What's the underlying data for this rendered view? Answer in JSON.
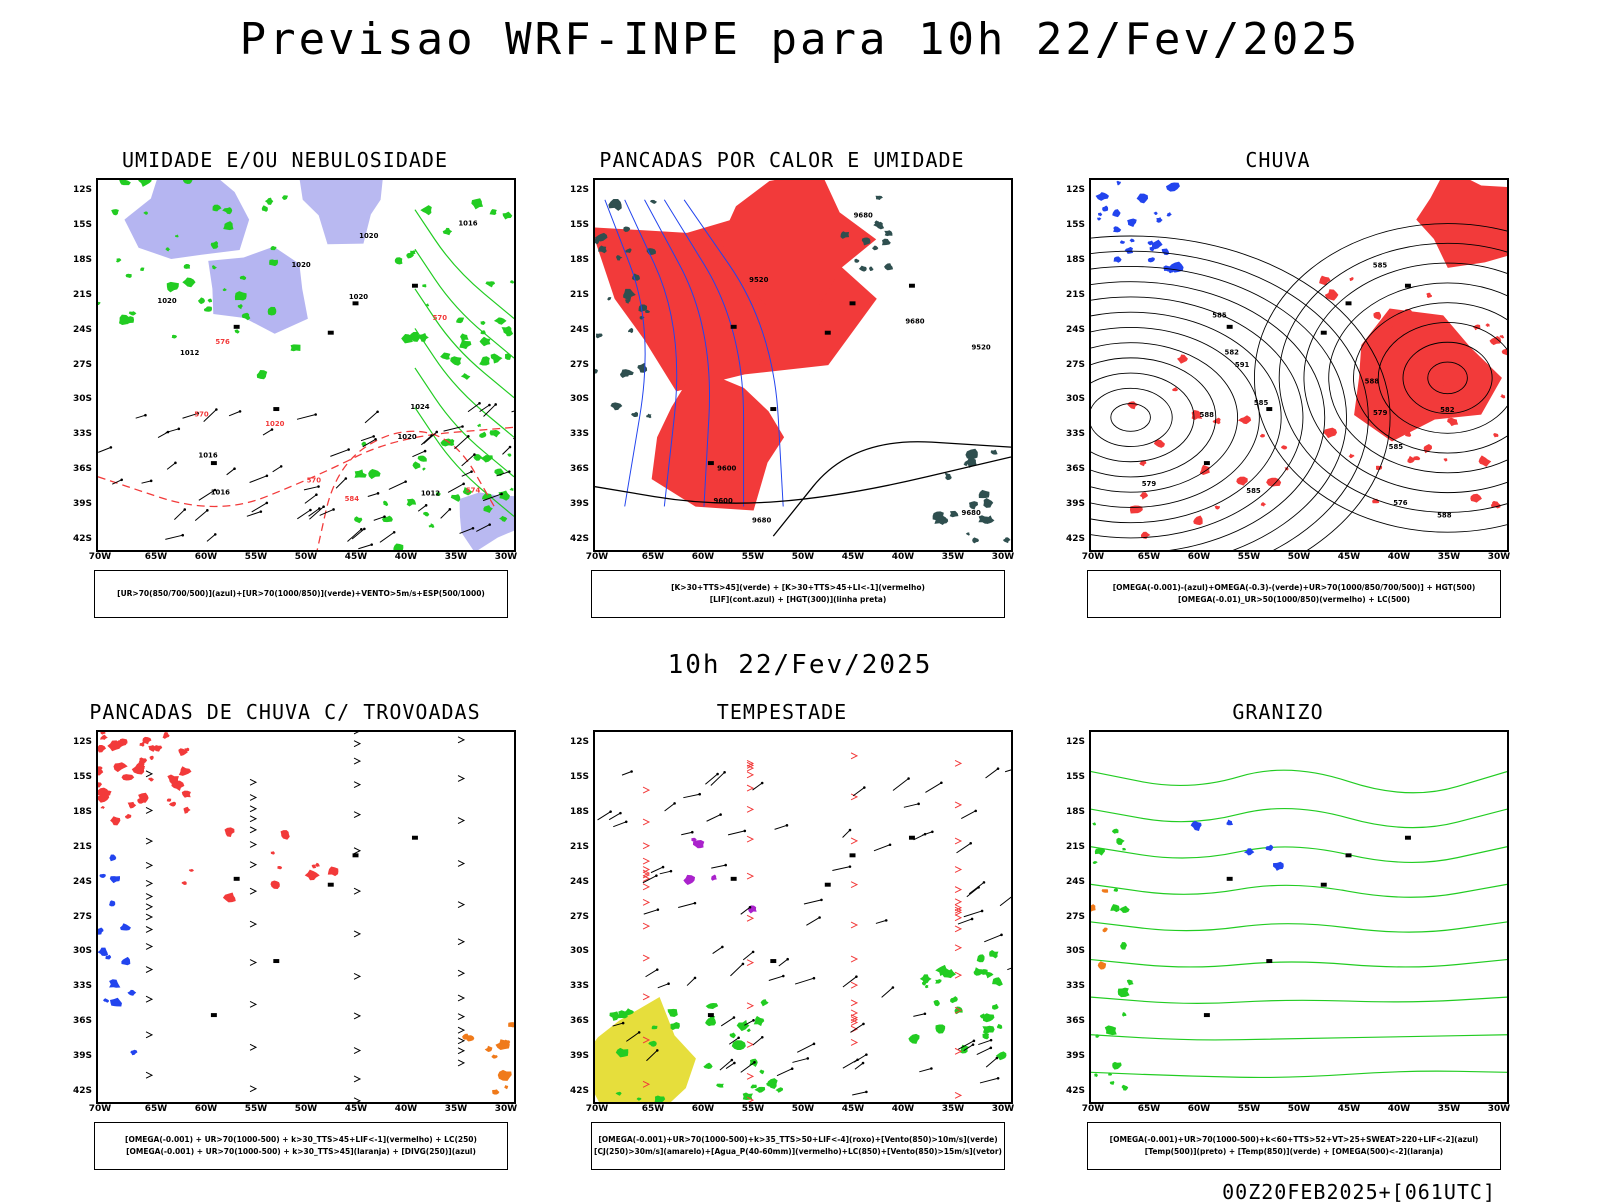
{
  "title": "Previsao WRF-INPE  para 10h 22/Fev/2025",
  "mid_label": "10h 22/Fev/2025",
  "footer": "00Z20FEB2025+[061UTC]",
  "lat_labels": [
    "12S",
    "15S",
    "18S",
    "21S",
    "24S",
    "27S",
    "30S",
    "33S",
    "36S",
    "39S",
    "42S"
  ],
  "lon_labels": [
    "70W",
    "65W",
    "60W",
    "55W",
    "50W",
    "45W",
    "40W",
    "35W",
    "30W"
  ],
  "colors": {
    "red": "#f23a3a",
    "green": "#22cc22",
    "blue": "#2244ee",
    "lavender": "#a8a8ee",
    "teal": "#2f4f4f",
    "yellow": "#e6de3c",
    "orange": "#f07a1a",
    "purple": "#aa22cc",
    "black": "#000000"
  },
  "panels": [
    {
      "title": "UMIDADE E/OU NEBULOSIDADE",
      "legend": [
        "[UR>70(850/700/500)](azul)+[UR>70(1000/850)](verde)+VENTO>5m/s+ESP(500/1000)"
      ],
      "contour_labels": [
        "1016",
        "1016",
        "1020",
        "1020",
        "1020",
        "1024",
        "1012",
        "1012",
        "1016",
        "1020",
        "1020",
        "1020",
        "570",
        "576",
        "570",
        "570",
        "574",
        "584"
      ]
    },
    {
      "title": "PANCADAS POR CALOR E UMIDADE",
      "legend": [
        "[K>30+TTS>45](verde) + [K>30+TTS>45+LI<-1](vermelho)",
        "[LIF](cont.azul) + [HGT(300)](linha preta)"
      ],
      "contour_labels": [
        "9600",
        "9680",
        "9680",
        "9680",
        "9680",
        "9600",
        "9520",
        "9520"
      ]
    },
    {
      "title": "CHUVA",
      "legend": [
        "[OMEGA(-0.001)-(azul)+OMEGA(-0.3)-(verde)+UR>70(1000/850/700/500)] + HGT(500)",
        "[OMEGA(-0.01)_UR>50(1000/850)(vermelho) + LC(500)"
      ],
      "contour_labels": [
        "585",
        "585",
        "585",
        "588",
        "588",
        "585",
        "582",
        "579",
        "576",
        "591",
        "588",
        "585",
        "582",
        "579"
      ]
    },
    {
      "title": "PANCADAS DE CHUVA C/ TROVOADAS",
      "legend": [
        "[OMEGA(-0.001) + UR>70(1000-500) + k>30_TTS>45+LIF<-1](vermelho) + LC(250)",
        "[OMEGA(-0.001) + UR>70(1000-500) + k>30_TTS>45](laranja) + [DIVG(250)](azul)"
      ],
      "contour_labels": []
    },
    {
      "title": "TEMPESTADE",
      "legend": [
        "[OMEGA(-0.001)+UR>70(1000-500)+k>35_TTS>50+LIF<-4](roxo)+[Vento(850)>10m/s](verde)",
        "[CJ(250)>30m/s](amarelo)+[Agua_P(40-60mm)](vermelho)+LC(850)+[Vento(850)>15m/s](vetor)"
      ],
      "contour_labels": []
    },
    {
      "title": "GRANIZO",
      "legend": [
        "[OMEGA(-0.001)+UR>70(1000-500)+k<60+TTS>52+VT>25+SWEAT>220+LIF<-2](azul)",
        "[Temp(500)](preto) + [Temp(850)](verde) + [OMEGA(500)<-2](laranja)"
      ],
      "contour_labels": []
    }
  ]
}
